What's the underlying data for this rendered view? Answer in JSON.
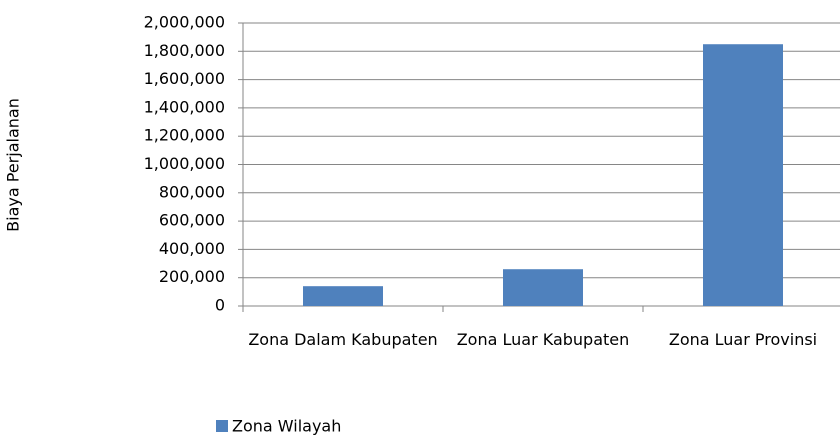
{
  "chart_data": {
    "type": "bar",
    "y_label": "Biaya Perjalanan",
    "categories": [
      "Zona Dalam Kabupaten",
      "Zona Luar Kabupaten",
      "Zona Luar Provinsi"
    ],
    "series": [
      {
        "name": "Zona Wilayah",
        "color": "#4f81bd",
        "values": [
          140000,
          260000,
          1850000
        ]
      }
    ],
    "ylim": [
      0,
      2000000
    ],
    "yticks": [
      0,
      {
        "value": 200000,
        "label": "200,000"
      },
      {
        "value": 400000,
        "label": "400,000"
      },
      {
        "value": 600000,
        "label": "600,000"
      },
      {
        "value": 800000,
        "label": "800,000"
      },
      {
        "value": 1000000,
        "label": "1,000,000"
      },
      {
        "value": 1200000,
        "label": "1,200,000"
      },
      {
        "value": 1400000,
        "label": "1,400,000"
      },
      {
        "value": 1600000,
        "label": "1,600,000"
      },
      {
        "value": 1800000,
        "label": "1,800,000"
      },
      {
        "value": 2000000,
        "label": "2,000,000"
      }
    ],
    "grid": true,
    "legend": "bottom"
  }
}
